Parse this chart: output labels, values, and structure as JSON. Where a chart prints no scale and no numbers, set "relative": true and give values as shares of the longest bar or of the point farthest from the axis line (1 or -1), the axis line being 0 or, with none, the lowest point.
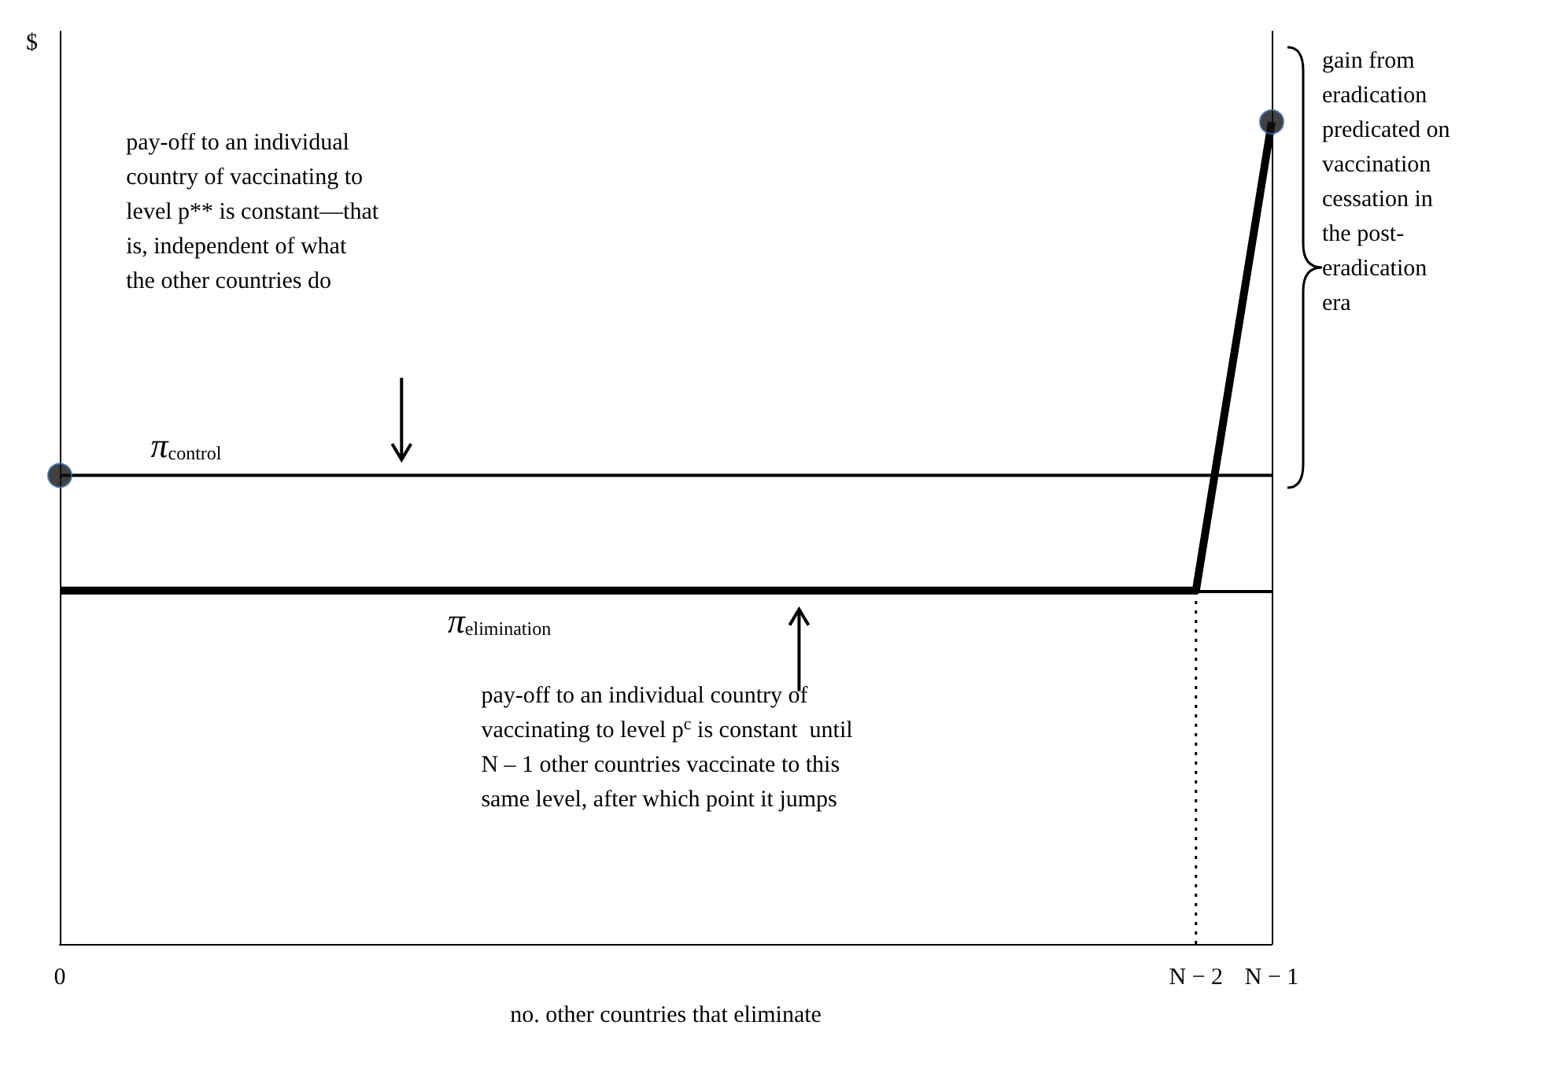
{
  "chart_data": {
    "type": "line",
    "xlabel": "no. other countries that eliminate",
    "ylabel": "$",
    "relative": true,
    "legend": false,
    "grid": false,
    "categories": [
      "0",
      null,
      null,
      null,
      null,
      null,
      null,
      null,
      null,
      null,
      null,
      null,
      null,
      null,
      null,
      "N − 2",
      "N − 1"
    ],
    "series": [
      {
        "name": "π$_{control}$",
        "color": "#000000",
        "x": [
          "0",
          "N − 1"
        ],
        "values": [
          0.57,
          0.57
        ],
        "marker": "none"
      },
      {
        "name": "π$_{elimination}$",
        "color": "#000000",
        "x": [
          "0",
          "N − 2",
          "N − 1"
        ],
        "values": [
          0.43,
          0.43,
          1
        ],
        "marker": "none"
      },
      {
        "color": "#000000",
        "x": [
          "N − 2",
          "N − 2"
        ],
        "values": [
          0,
          0.43
        ],
        "line_style": "dotted",
        "marker": "none"
      },
      {
        "type": "scatter",
        "color": "#111111",
        "x": [
          "0",
          "N − 1"
        ],
        "values": [
          0.57,
          1
        ],
        "marker": "circle"
      }
    ],
    "ref_lines": [
      {
        "axis": "y",
        "value": 0.43
      }
    ],
    "annotations": [
      "pay-off to an individual\ncountry of vaccinating to\nlevel p** is constant—that\nis, independent of what\nthe other countries do",
      "pay-off to an individual country of\nvaccinating to level p$^{c}$ is constant  until\nN – 1 other countries vaccinate to this\nsame level, after which point it jumps",
      "gain from\neradication\npredicated on\nvaccination\ncessation in\nthe post-\neradication\nera"
    ]
  }
}
